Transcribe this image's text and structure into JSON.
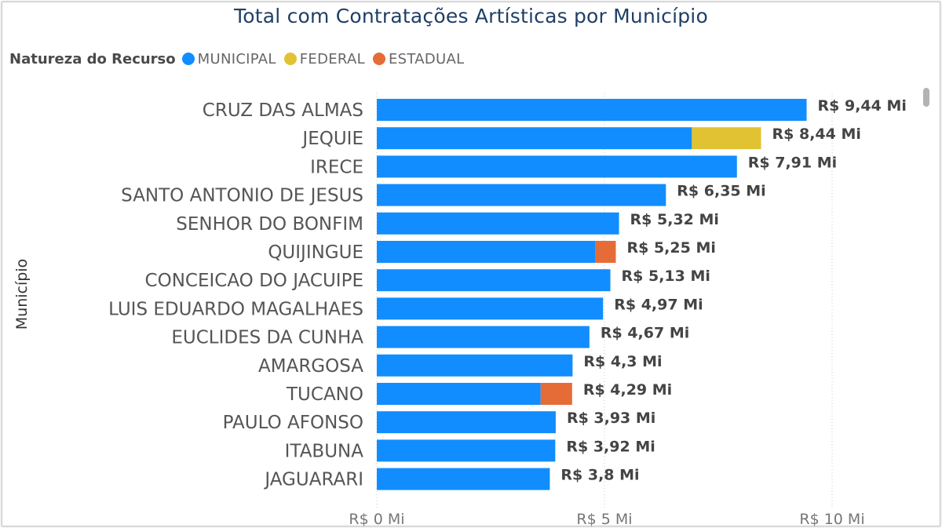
{
  "chart_data": {
    "type": "bar",
    "orientation": "horizontal",
    "stacked": true,
    "title": "Total com Contratações Artísticas por Município",
    "ylabel": "Município",
    "legend": {
      "title": "Natureza do Recurso",
      "placement": "top-left",
      "entries": [
        "MUNICIPAL",
        "FEDERAL",
        "ESTADUAL"
      ]
    },
    "categories": [
      "CRUZ DAS ALMAS",
      "JEQUIE",
      "IRECE",
      "SANTO ANTONIO DE JESUS",
      "SENHOR DO BONFIM",
      "QUIJINGUE",
      "CONCEICAO DO JACUIPE",
      "LUIS EDUARDO MAGALHAES",
      "EUCLIDES DA CUNHA",
      "AMARGOSA",
      "TUCANO",
      "PAULO AFONSO",
      "ITABUNA",
      "JAGUARARI"
    ],
    "series": [
      {
        "name": "MUNICIPAL",
        "color": "#118DFF",
        "values": [
          9.44,
          6.92,
          7.91,
          6.35,
          5.32,
          4.8,
          5.13,
          4.97,
          4.67,
          4.3,
          3.6,
          3.93,
          3.92,
          3.8
        ]
      },
      {
        "name": "FEDERAL",
        "color": "#E1C233",
        "values": [
          0,
          1.52,
          0,
          0,
          0,
          0,
          0,
          0,
          0,
          0,
          0,
          0,
          0,
          0
        ]
      },
      {
        "name": "ESTADUAL",
        "color": "#E66C37",
        "values": [
          0,
          0,
          0,
          0,
          0,
          0.45,
          0,
          0,
          0,
          0,
          0.69,
          0,
          0,
          0
        ]
      }
    ],
    "data_labels": [
      "R$ 9,44 Mi",
      "R$ 8,44 Mi",
      "R$ 7,91 Mi",
      "R$ 6,35 Mi",
      "R$ 5,32 Mi",
      "R$ 5,25 Mi",
      "R$ 5,13 Mi",
      "R$ 4,97 Mi",
      "R$ 4,67 Mi",
      "R$ 4,3 Mi",
      "R$ 4,29 Mi",
      "R$ 3,93 Mi",
      "R$ 3,92 Mi",
      "R$ 3,8 Mi"
    ],
    "xlim": [
      0,
      10
    ],
    "xticks": [
      0,
      5,
      10
    ],
    "xtick_labels": [
      "R$ 0 Mi",
      "R$ 5 Mi",
      "R$ 10 Mi"
    ],
    "grid": true
  }
}
